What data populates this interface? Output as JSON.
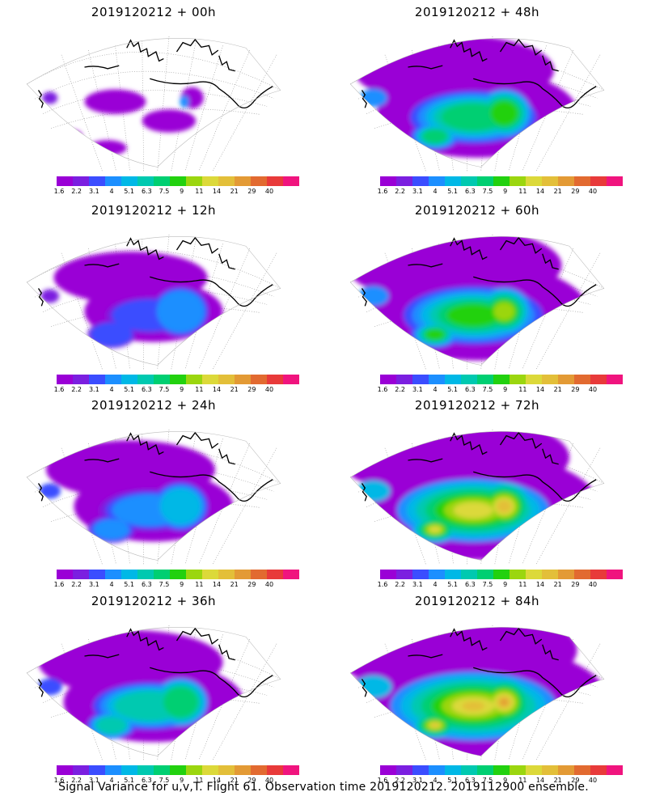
{
  "panels": [
    {
      "title": "2019120212 + 00h",
      "intensity": 0
    },
    {
      "title": "2019120212 + 48h",
      "intensity": 4
    },
    {
      "title": "2019120212 + 12h",
      "intensity": 1
    },
    {
      "title": "2019120212 + 60h",
      "intensity": 5
    },
    {
      "title": "2019120212 + 24h",
      "intensity": 2
    },
    {
      "title": "2019120212 + 72h",
      "intensity": 6
    },
    {
      "title": "2019120212 + 36h",
      "intensity": 3
    },
    {
      "title": "2019120212 + 84h",
      "intensity": 7
    }
  ],
  "colorbar": {
    "colors": [
      "#9a00d6",
      "#7b1fe0",
      "#3b4dff",
      "#1c8fff",
      "#00b8e6",
      "#00c9b0",
      "#00cf72",
      "#22d10f",
      "#9bd60f",
      "#dcd93a",
      "#e3bf39",
      "#e39a35",
      "#e26a30",
      "#e83a3a",
      "#f0147e"
    ],
    "labels": [
      "1.6",
      "2.2",
      "3.1",
      "4",
      "5.1",
      "6.3",
      "7.5",
      "9",
      "11",
      "14",
      "21",
      "29",
      "40"
    ]
  },
  "caption": "Signal Variance for u,v,T. Flight 61. Observation time 2019120212. 2019112900 ensemble."
}
